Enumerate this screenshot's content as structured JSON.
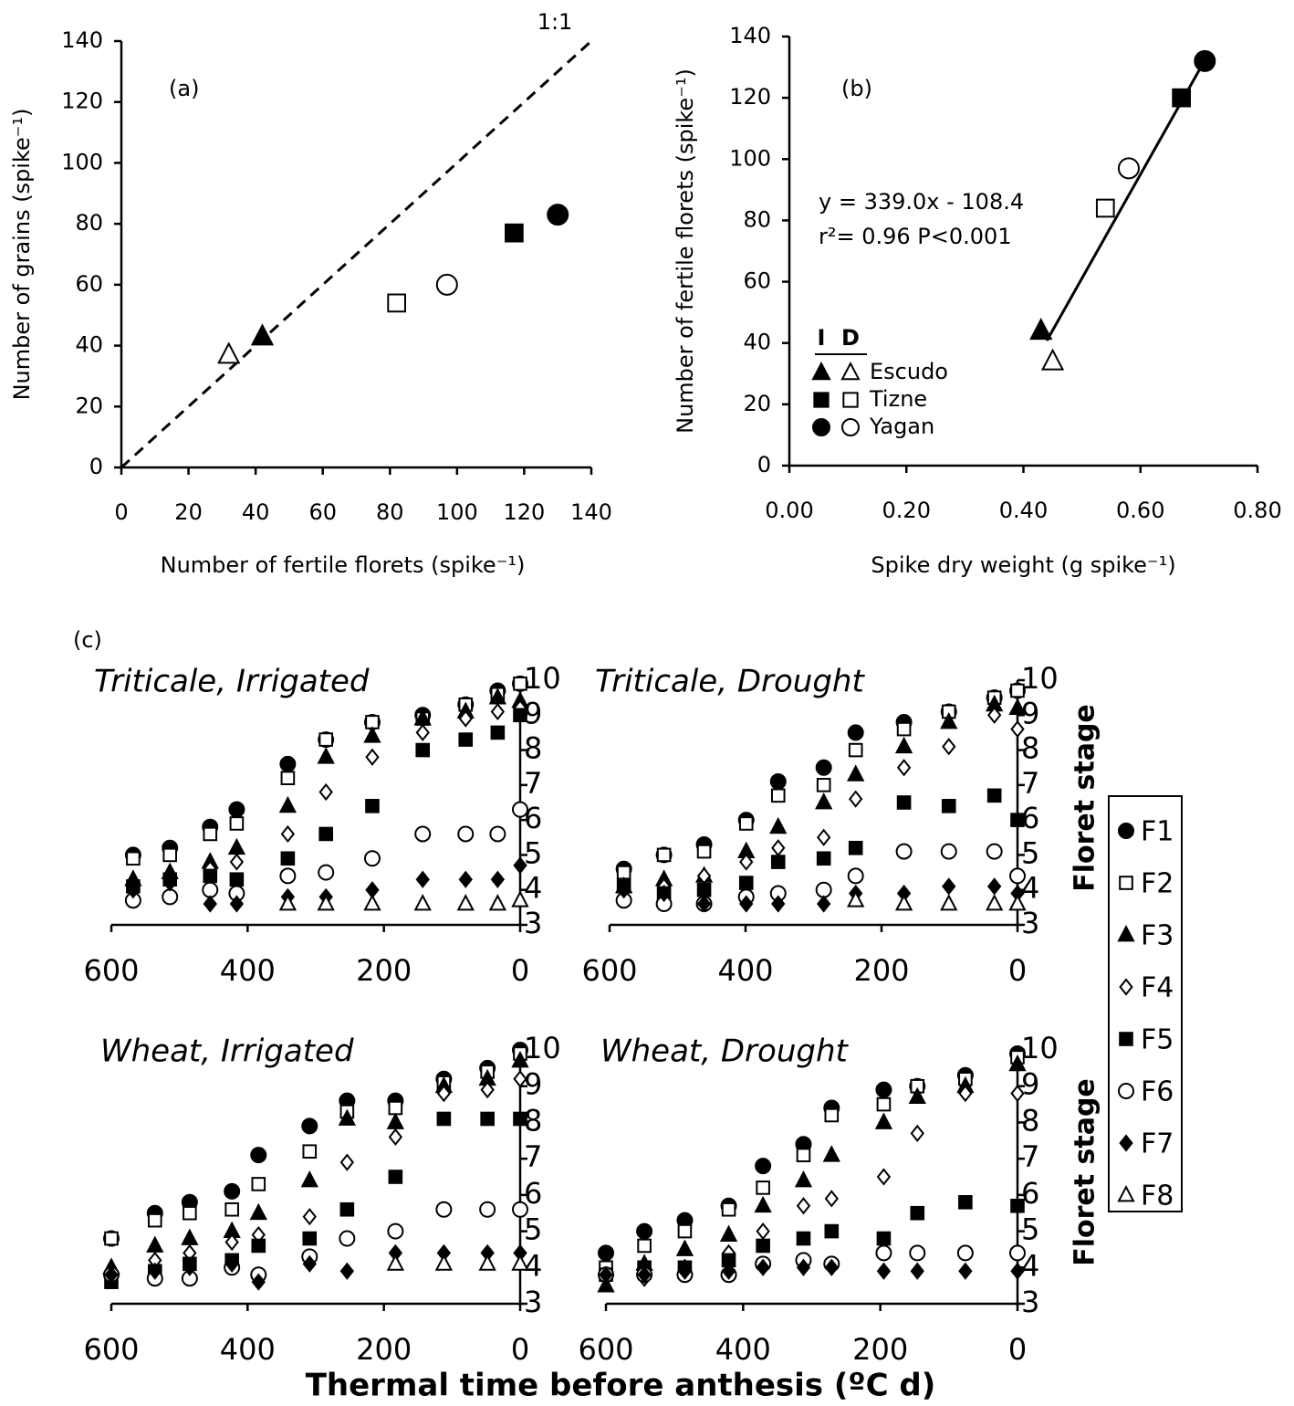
{
  "chart_data": [
    {
      "type": "scatter",
      "panel_label": "(a)",
      "line_label": "1:1",
      "xlabel": "Number of fertile florets (spike⁻¹)",
      "ylabel": "Number of grains (spike⁻¹)",
      "xlim": [
        0,
        140
      ],
      "ylim": [
        0,
        140
      ],
      "xticks": [
        0,
        20,
        40,
        60,
        80,
        100,
        120,
        140
      ],
      "yticks": [
        0,
        20,
        40,
        60,
        80,
        100,
        120,
        140
      ],
      "color": "#000000",
      "identity_line": true,
      "series": [
        {
          "marker": "triangle",
          "filled": true,
          "x": [
            42
          ],
          "values": [
            43
          ]
        },
        {
          "marker": "triangle",
          "filled": false,
          "x": [
            32
          ],
          "values": [
            37
          ]
        },
        {
          "marker": "square",
          "filled": true,
          "x": [
            117
          ],
          "values": [
            77
          ]
        },
        {
          "marker": "square",
          "filled": false,
          "x": [
            82
          ],
          "values": [
            54
          ]
        },
        {
          "marker": "circle",
          "filled": true,
          "x": [
            130
          ],
          "values": [
            83
          ]
        },
        {
          "marker": "circle",
          "filled": false,
          "x": [
            97
          ],
          "values": [
            60
          ]
        }
      ]
    },
    {
      "type": "scatter",
      "panel_label": "(b)",
      "annotations": [
        "y = 339.0x - 108.4",
        "r²= 0.96 P<0.001"
      ],
      "xlabel": "Spike dry weight (g  spike⁻¹)",
      "ylabel": "Number of fertile florets (spike⁻¹)",
      "xlim": [
        0,
        0.8
      ],
      "ylim": [
        0,
        140
      ],
      "xticks": [
        {
          "value": 0,
          "label": "0.00"
        },
        {
          "value": 0.2,
          "label": "0.20"
        },
        {
          "value": 0.4,
          "label": "0.40"
        },
        {
          "value": 0.6,
          "label": "0.60"
        },
        {
          "value": 0.8,
          "label": "0.80"
        }
      ],
      "yticks": [
        0,
        20,
        40,
        60,
        80,
        100,
        120,
        140
      ],
      "color": "#000000",
      "fit": {
        "slope": 339.0,
        "intercept": -108.4,
        "x": [
          0.44,
          0.71
        ]
      },
      "legend": {
        "columns": [
          "I",
          "D"
        ],
        "rows": [
          "Escudo",
          "Tizne",
          "Yagan"
        ]
      },
      "series": [
        {
          "marker": "triangle",
          "filled": true,
          "x": [
            0.43
          ],
          "values": [
            44
          ]
        },
        {
          "marker": "triangle",
          "filled": false,
          "x": [
            0.45
          ],
          "values": [
            34
          ]
        },
        {
          "marker": "square",
          "filled": true,
          "x": [
            0.67
          ],
          "values": [
            120
          ]
        },
        {
          "marker": "square",
          "filled": false,
          "x": [
            0.54
          ],
          "values": [
            84
          ]
        },
        {
          "marker": "circle",
          "filled": true,
          "x": [
            0.71
          ],
          "values": [
            132
          ]
        },
        {
          "marker": "circle",
          "filled": false,
          "x": [
            0.58
          ],
          "values": [
            97
          ]
        }
      ]
    },
    {
      "type": "scatter",
      "panel_label": "(c)",
      "title": "Triticale, Irrigated",
      "xlim": [
        600,
        0
      ],
      "ylim": [
        3,
        10
      ],
      "xticks": [
        600,
        400,
        200,
        0
      ],
      "yticks": [
        3,
        4,
        5,
        6,
        7,
        8,
        9,
        10
      ],
      "color": "#000000",
      "x": [
        568,
        514,
        455,
        416,
        341,
        285,
        217,
        143,
        80,
        33,
        0
      ],
      "series": [
        {
          "name": "F1",
          "marker": "circle",
          "filled": true,
          "values": [
            5.0,
            5.2,
            5.8,
            6.3,
            7.6,
            8.3,
            8.8,
            9.0,
            9.3,
            9.7,
            9.9
          ]
        },
        {
          "name": "F2",
          "marker": "square",
          "filled": false,
          "values": [
            4.9,
            5.0,
            5.6,
            5.9,
            7.2,
            8.3,
            8.8,
            8.9,
            9.3,
            9.6,
            9.9
          ]
        },
        {
          "name": "F3",
          "marker": "triangle",
          "filled": true,
          "values": [
            4.3,
            4.5,
            4.8,
            5.2,
            6.4,
            7.8,
            8.4,
            8.9,
            9.1,
            9.5,
            9.4
          ]
        },
        {
          "name": "F4",
          "marker": "diamond",
          "filled": false,
          "values": [
            4.1,
            4.3,
            4.6,
            4.8,
            5.6,
            6.8,
            7.8,
            8.5,
            8.9,
            9.1,
            9.2
          ]
        },
        {
          "name": "F5",
          "marker": "square",
          "filled": true,
          "values": [
            4.1,
            4.3,
            4.4,
            4.3,
            4.9,
            5.6,
            6.4,
            8.0,
            8.3,
            8.5,
            9.0
          ]
        },
        {
          "name": "F6",
          "marker": "circle",
          "filled": false,
          "values": [
            3.7,
            3.8,
            4.0,
            3.9,
            4.4,
            4.5,
            4.9,
            5.6,
            5.6,
            5.6,
            6.3
          ]
        },
        {
          "name": "F7",
          "marker": "diamond",
          "filled": true,
          "values": [
            4.0,
            4.2,
            3.6,
            3.6,
            3.8,
            3.8,
            4.0,
            4.3,
            4.3,
            4.3,
            4.7
          ]
        },
        {
          "name": "F8",
          "marker": "triangle",
          "filled": false,
          "values": [
            null,
            null,
            null,
            null,
            3.6,
            3.6,
            3.6,
            3.6,
            3.6,
            3.6,
            3.7
          ]
        }
      ]
    },
    {
      "type": "scatter",
      "title": "Triticale, Drought",
      "y2label": "Floret stage",
      "xlim": [
        600,
        0
      ],
      "ylim": [
        3,
        10
      ],
      "xticks": [
        600,
        400,
        200,
        0
      ],
      "yticks": [
        3,
        4,
        5,
        6,
        7,
        8,
        9,
        10
      ],
      "color": "#000000",
      "x": [
        579,
        520,
        461,
        399,
        352,
        285,
        238,
        167,
        101,
        34,
        0
      ],
      "series": [
        {
          "marker": "circle",
          "filled": true,
          "values": [
            4.6,
            5.0,
            5.3,
            6.0,
            7.1,
            7.5,
            8.5,
            8.8,
            9.1,
            9.5,
            9.7
          ]
        },
        {
          "marker": "square",
          "filled": false,
          "values": [
            4.5,
            5.0,
            5.1,
            5.9,
            6.7,
            7.0,
            8.0,
            8.6,
            9.1,
            9.5,
            9.7
          ]
        },
        {
          "marker": "triangle",
          "filled": true,
          "values": [
            4.1,
            4.3,
            4.4,
            5.1,
            5.8,
            6.5,
            7.3,
            8.1,
            8.8,
            9.3,
            9.2
          ]
        },
        {
          "marker": "diamond",
          "filled": false,
          "values": [
            4.1,
            4.1,
            4.4,
            4.8,
            5.2,
            5.5,
            6.6,
            7.5,
            8.1,
            9.0,
            8.6
          ]
        },
        {
          "marker": "square",
          "filled": true,
          "values": [
            4.1,
            3.9,
            4.0,
            4.2,
            4.8,
            4.9,
            5.2,
            6.5,
            6.4,
            6.7,
            6.0
          ]
        },
        {
          "marker": "circle",
          "filled": false,
          "values": [
            3.7,
            3.6,
            3.6,
            3.8,
            3.9,
            4.0,
            4.4,
            5.1,
            5.1,
            5.1,
            4.4
          ]
        },
        {
          "marker": "diamond",
          "filled": true,
          "values": [
            4.0,
            3.9,
            3.6,
            3.6,
            3.6,
            3.6,
            3.9,
            3.9,
            4.1,
            4.1,
            3.9
          ]
        },
        {
          "marker": "triangle",
          "filled": false,
          "values": [
            null,
            null,
            null,
            null,
            null,
            null,
            3.7,
            3.6,
            3.6,
            3.6,
            3.6
          ]
        }
      ]
    },
    {
      "type": "scatter",
      "title": "Wheat, Irrigated",
      "xlabel": "Thermal time before anthesis (ºC d)",
      "xlim": [
        600,
        0
      ],
      "ylim": [
        3,
        10
      ],
      "xticks": [
        600,
        400,
        200,
        0
      ],
      "yticks": [
        3,
        4,
        5,
        6,
        7,
        8,
        9,
        10
      ],
      "color": "#000000",
      "x": [
        600,
        536,
        485,
        423,
        384,
        309,
        254,
        183,
        112,
        48,
        0
      ],
      "series": [
        {
          "marker": "circle",
          "filled": true,
          "values": [
            4.8,
            5.5,
            5.8,
            6.1,
            7.1,
            7.9,
            8.6,
            8.6,
            9.2,
            9.5,
            10.0
          ]
        },
        {
          "marker": "square",
          "filled": false,
          "values": [
            4.8,
            5.3,
            5.5,
            5.6,
            6.3,
            7.2,
            8.3,
            8.4,
            9.1,
            9.4,
            9.9
          ]
        },
        {
          "marker": "triangle",
          "filled": true,
          "values": [
            4.0,
            4.6,
            4.8,
            5.0,
            5.5,
            6.4,
            8.1,
            8.0,
            9.0,
            9.2,
            9.7
          ]
        },
        {
          "marker": "diamond",
          "filled": false,
          "values": [
            3.8,
            4.2,
            4.4,
            4.7,
            4.9,
            5.4,
            6.9,
            7.6,
            8.8,
            8.9,
            9.2
          ]
        },
        {
          "marker": "square",
          "filled": true,
          "values": [
            3.6,
            3.9,
            4.1,
            4.2,
            4.6,
            4.8,
            5.6,
            6.5,
            8.1,
            8.1,
            8.1
          ]
        },
        {
          "marker": "circle",
          "filled": false,
          "values": [
            3.8,
            3.7,
            3.7,
            4.0,
            3.8,
            4.3,
            4.8,
            5.0,
            5.6,
            5.6,
            5.6
          ]
        },
        {
          "marker": "diamond",
          "filled": true,
          "values": [
            3.8,
            3.9,
            4.0,
            4.1,
            3.6,
            4.1,
            3.9,
            4.4,
            4.4,
            4.4,
            4.4
          ]
        },
        {
          "marker": "triangle",
          "filled": false,
          "values": [
            null,
            null,
            null,
            null,
            null,
            null,
            null,
            4.1,
            4.1,
            4.1,
            4.1
          ]
        }
      ]
    },
    {
      "type": "scatter",
      "title": "Wheat, Drought",
      "y2label": "Floret stage",
      "xlim": [
        600,
        0
      ],
      "ylim": [
        3,
        10
      ],
      "xticks": [
        600,
        400,
        200,
        0
      ],
      "yticks": [
        3,
        4,
        5,
        6,
        7,
        8,
        9,
        10
      ],
      "color": "#000000",
      "x": [
        600,
        544,
        485,
        421,
        371,
        312,
        271,
        195,
        146,
        76,
        0
      ],
      "series": [
        {
          "marker": "circle",
          "filled": true,
          "values": [
            4.4,
            5.0,
            5.3,
            5.7,
            6.8,
            7.4,
            8.4,
            8.9,
            9.0,
            9.3,
            9.9
          ]
        },
        {
          "marker": "square",
          "filled": false,
          "values": [
            4.0,
            4.6,
            5.0,
            5.6,
            6.2,
            7.1,
            8.2,
            8.5,
            9.0,
            9.2,
            9.8
          ]
        },
        {
          "marker": "triangle",
          "filled": true,
          "values": [
            3.5,
            4.1,
            4.5,
            4.9,
            5.7,
            6.4,
            7.1,
            8.0,
            8.7,
            9.0,
            9.6
          ]
        },
        {
          "marker": "diamond",
          "filled": false,
          "values": [
            3.8,
            3.7,
            4.0,
            4.4,
            5.0,
            5.7,
            5.9,
            6.5,
            7.7,
            8.8,
            8.8
          ]
        },
        {
          "marker": "square",
          "filled": true,
          "values": [
            3.8,
            4.0,
            4.0,
            4.2,
            4.6,
            4.8,
            5.0,
            4.8,
            5.5,
            5.8,
            5.7
          ]
        },
        {
          "marker": "circle",
          "filled": false,
          "values": [
            3.8,
            3.8,
            3.8,
            3.8,
            4.1,
            4.2,
            4.1,
            4.4,
            4.4,
            4.4,
            4.4
          ]
        },
        {
          "marker": "diamond",
          "filled": true,
          "values": [
            3.8,
            3.8,
            3.9,
            3.9,
            4.0,
            4.0,
            4.0,
            3.9,
            3.9,
            3.9,
            3.9
          ]
        }
      ]
    }
  ]
}
